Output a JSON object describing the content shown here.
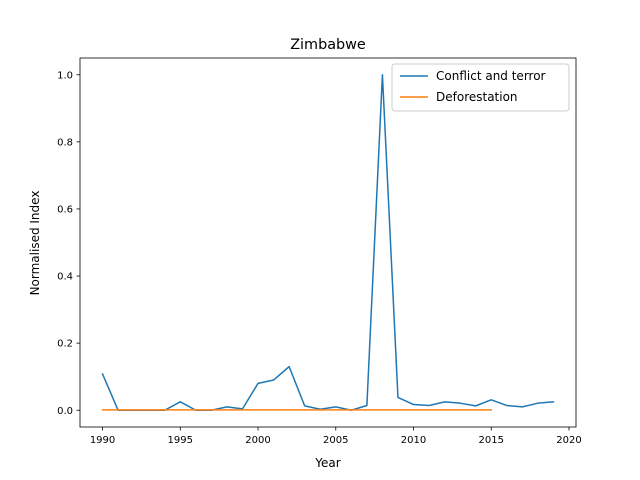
{
  "chart_data": {
    "type": "line",
    "title": "Zimbabwe",
    "xlabel": "Year",
    "ylabel": "Normalised Index",
    "xlim": [
      1988.55,
      2020.45
    ],
    "ylim": [
      -0.05,
      1.05
    ],
    "xticks": [
      1990,
      1995,
      2000,
      2005,
      2010,
      2015,
      2020
    ],
    "yticks": [
      0.0,
      0.2,
      0.4,
      0.6,
      0.8,
      1.0
    ],
    "xtick_labels": [
      "1990",
      "1995",
      "2000",
      "2005",
      "2010",
      "2015",
      "2020"
    ],
    "ytick_labels": [
      "0.0",
      "0.2",
      "0.4",
      "0.6",
      "0.8",
      "1.0"
    ],
    "grid": false,
    "legend_position": "top-right",
    "series": [
      {
        "name": "Conflict and terror",
        "color": "#1f77b4",
        "x": [
          1990,
          1991,
          1992,
          1993,
          1994,
          1995,
          1996,
          1997,
          1998,
          1999,
          2000,
          2001,
          2002,
          2003,
          2004,
          2005,
          2006,
          2007,
          2008,
          2009,
          2010,
          2011,
          2012,
          2013,
          2014,
          2015,
          2016,
          2017,
          2018,
          2019
        ],
        "y": [
          0.108,
          0.0,
          0.0,
          0.0,
          0.0,
          0.025,
          0.0,
          0.0,
          0.01,
          0.004,
          0.08,
          0.09,
          0.13,
          0.013,
          0.003,
          0.01,
          0.0,
          0.014,
          1.0,
          0.038,
          0.017,
          0.014,
          0.025,
          0.021,
          0.013,
          0.031,
          0.014,
          0.01,
          0.021,
          0.025
        ]
      },
      {
        "name": "Deforestation",
        "color": "#ff7f0e",
        "x": [
          1990,
          1991,
          1992,
          1993,
          1994,
          1995,
          1996,
          1997,
          1998,
          1999,
          2000,
          2001,
          2002,
          2003,
          2004,
          2005,
          2006,
          2007,
          2008,
          2009,
          2010,
          2011,
          2012,
          2013,
          2014,
          2015
        ],
        "y": [
          0.001,
          0.001,
          0.001,
          0.001,
          0.001,
          0.001,
          0.001,
          0.001,
          0.001,
          0.001,
          0.001,
          0.001,
          0.001,
          0.001,
          0.001,
          0.001,
          0.001,
          0.001,
          0.001,
          0.001,
          0.001,
          0.001,
          0.001,
          0.001,
          0.001,
          0.001
        ]
      }
    ]
  }
}
